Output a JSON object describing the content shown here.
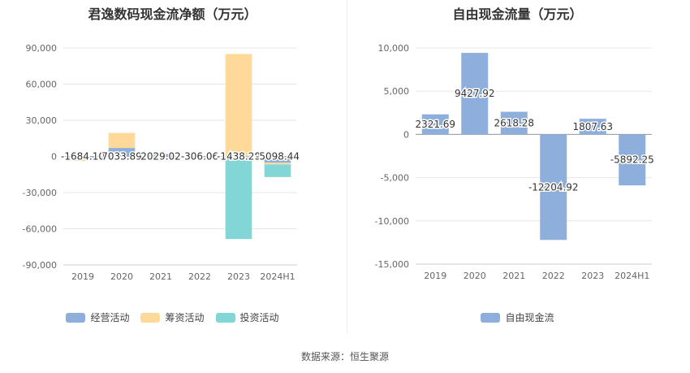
{
  "source": "数据来源：恒生聚源",
  "chart_data": [
    {
      "type": "bar",
      "stacked": true,
      "title": "君逸数码现金流净额（万元）",
      "categories": [
        "2019",
        "2020",
        "2021",
        "2022",
        "2023",
        "2024H1"
      ],
      "ylim": [
        -90000,
        90000
      ],
      "yticks": [
        90000,
        60000,
        30000,
        0,
        -30000,
        -60000,
        -90000
      ],
      "ytick_labels": [
        "90,000",
        "60,000",
        "30,000",
        "0",
        "-30,000",
        "-60,000",
        "-90,000"
      ],
      "grid": true,
      "legend_position": "bottom",
      "series": [
        {
          "name": "经营活动",
          "color": "#8eaedc",
          "values": [
            -1684.1,
            7033.89,
            2029.02,
            -306.06,
            -1438.28,
            -5098.44
          ],
          "labels": [
            "-1684.10",
            "7033.89",
            "2029.02",
            "-306.06",
            "-1438.28",
            "-5098.44"
          ]
        },
        {
          "name": "筹资活动",
          "color": "#ffd99a",
          "values": [
            -2000,
            12500,
            0,
            0,
            85000,
            -1500
          ]
        },
        {
          "name": "投资活动",
          "color": "#82d6d6",
          "values": [
            0,
            0,
            0,
            0,
            -67000,
            -10500
          ]
        }
      ]
    },
    {
      "type": "bar",
      "title": "自由现金流量（万元）",
      "categories": [
        "2019",
        "2020",
        "2021",
        "2022",
        "2023",
        "2024H1"
      ],
      "ylim": [
        -15000,
        10000
      ],
      "yticks": [
        10000,
        5000,
        0,
        -5000,
        -10000,
        -15000
      ],
      "ytick_labels": [
        "10,000",
        "5,000",
        "0",
        "-5,000",
        "-10,000",
        "-15,000"
      ],
      "grid": true,
      "legend_position": "bottom",
      "series": [
        {
          "name": "自由现金流",
          "color": "#8eaedc",
          "values": [
            2321.69,
            9427.92,
            2618.28,
            -12204.92,
            1807.63,
            -5892.25
          ],
          "labels": [
            "2321.69",
            "9427.92",
            "2618.28",
            "-12204.92",
            "1807.63",
            "-5892.25"
          ]
        }
      ]
    }
  ]
}
